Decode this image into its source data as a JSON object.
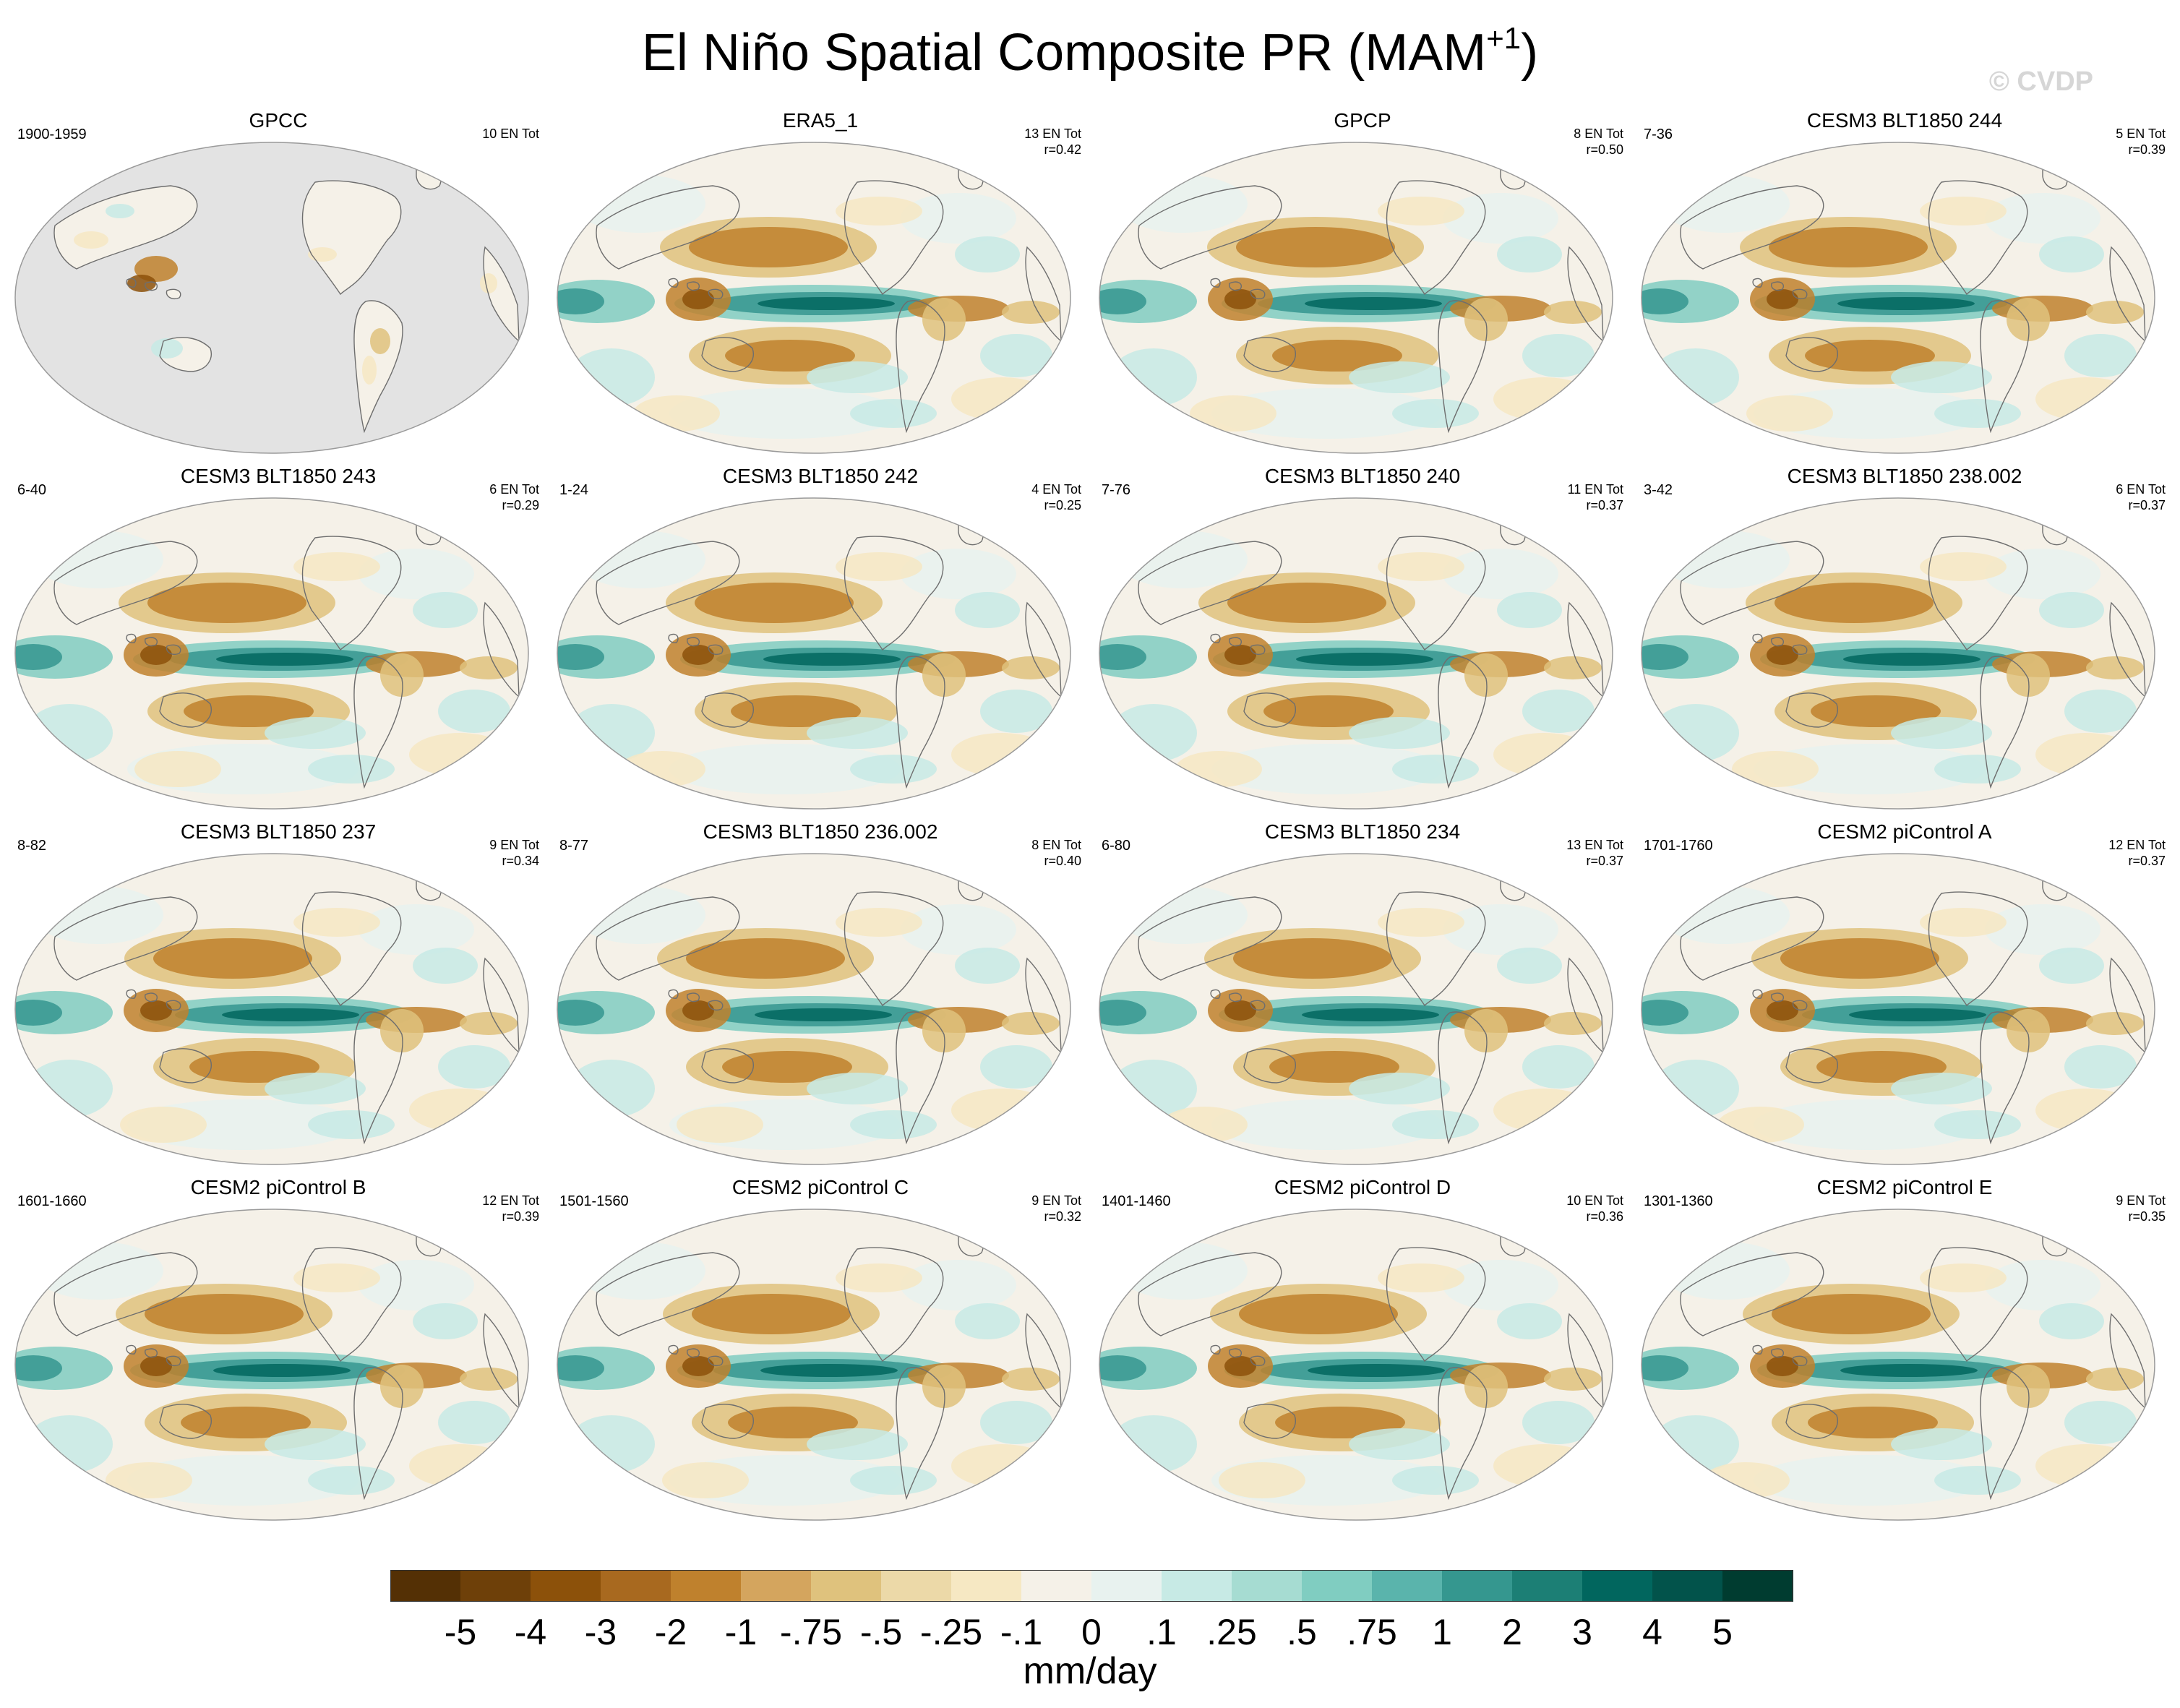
{
  "figure": {
    "title": "El Niño Spatial Composite PR (MAM",
    "title_superscript": "+1",
    "title_close": ")",
    "watermark": "© CVDP"
  },
  "panels": [
    {
      "title": "GPCC",
      "years": "1900-1959",
      "count": "10 EN Tot",
      "corr": "",
      "masked_ocean": true
    },
    {
      "title": "ERA5_1",
      "years": "",
      "count": "13 EN Tot",
      "corr": "r=0.42",
      "masked_ocean": false
    },
    {
      "title": "GPCP",
      "years": "",
      "count": "8 EN Tot",
      "corr": "r=0.50",
      "masked_ocean": false
    },
    {
      "title": "CESM3 BLT1850 244",
      "years": "7-36",
      "count": "5 EN Tot",
      "corr": "r=0.39",
      "masked_ocean": false
    },
    {
      "title": "CESM3 BLT1850 243",
      "years": "6-40",
      "count": "6 EN Tot",
      "corr": "r=0.29",
      "masked_ocean": false
    },
    {
      "title": "CESM3 BLT1850 242",
      "years": "1-24",
      "count": "4 EN Tot",
      "corr": "r=0.25",
      "masked_ocean": false
    },
    {
      "title": "CESM3 BLT1850 240",
      "years": "7-76",
      "count": "11 EN Tot",
      "corr": "r=0.37",
      "masked_ocean": false
    },
    {
      "title": "CESM3 BLT1850 238.002",
      "years": "3-42",
      "count": "6 EN Tot",
      "corr": "r=0.37",
      "masked_ocean": false
    },
    {
      "title": "CESM3 BLT1850 237",
      "years": "8-82",
      "count": "9 EN Tot",
      "corr": "r=0.34",
      "masked_ocean": false
    },
    {
      "title": "CESM3 BLT1850 236.002",
      "years": "8-77",
      "count": "8 EN Tot",
      "corr": "r=0.40",
      "masked_ocean": false
    },
    {
      "title": "CESM3 BLT1850 234",
      "years": "6-80",
      "count": "13 EN Tot",
      "corr": "r=0.37",
      "masked_ocean": false
    },
    {
      "title": "CESM2 piControl A",
      "years": "1701-1760",
      "count": "12 EN Tot",
      "corr": "r=0.37",
      "masked_ocean": false
    },
    {
      "title": "CESM2 piControl B",
      "years": "1601-1660",
      "count": "12 EN Tot",
      "corr": "r=0.39",
      "masked_ocean": false
    },
    {
      "title": "CESM2 piControl C",
      "years": "1501-1560",
      "count": "9 EN Tot",
      "corr": "r=0.32",
      "masked_ocean": false
    },
    {
      "title": "CESM2 piControl D",
      "years": "1401-1460",
      "count": "10 EN Tot",
      "corr": "r=0.36",
      "masked_ocean": false
    },
    {
      "title": "CESM2 piControl E",
      "years": "1301-1360",
      "count": "9 EN Tot",
      "corr": "r=0.35",
      "masked_ocean": false
    }
  ],
  "colorbar": {
    "units": "mm/day",
    "tick_labels": [
      "-5",
      "-4",
      "-3",
      "-2",
      "-1",
      "-.75",
      "-.5",
      "-.25",
      "-.1",
      "0",
      ".1",
      ".25",
      ".5",
      ".75",
      "1",
      "2",
      "3",
      "4",
      "5"
    ],
    "colors": [
      "#543005",
      "#6e4009",
      "#8c510a",
      "#a8691f",
      "#bf812d",
      "#d4a55e",
      "#dfc27d",
      "#ecd9a8",
      "#f6e8c3",
      "#f5f1e8",
      "#e8f2ef",
      "#c7eae5",
      "#a6dcd2",
      "#80cdc1",
      "#5ab4ac",
      "#35978f",
      "#1c7f75",
      "#01665e",
      "#02534b",
      "#003c30"
    ]
  },
  "colors": {
    "mask_gray": "#e3e3e3",
    "coast": "#6e6e6e",
    "map_border": "#9a9a9a"
  }
}
